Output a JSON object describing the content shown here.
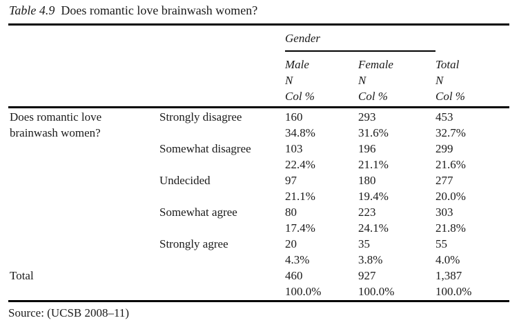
{
  "caption": {
    "label": "Table 4.9",
    "title": "Does romantic love brainwash women?"
  },
  "header": {
    "group": "Gender",
    "cols": [
      {
        "name": "Male",
        "stat1": "N",
        "stat2": "Col %"
      },
      {
        "name": "Female",
        "stat1": "N",
        "stat2": "Col %"
      },
      {
        "name": "Total",
        "stat1": "N",
        "stat2": "Col %"
      }
    ]
  },
  "stub": {
    "question_line1": "Does romantic love",
    "question_line2": "brainwash women?",
    "total_label": "Total"
  },
  "rows": [
    {
      "category": "Strongly disagree",
      "male_n": "160",
      "male_pct": "34.8%",
      "female_n": "293",
      "female_pct": "31.6%",
      "total_n": "453",
      "total_pct": "32.7%"
    },
    {
      "category": "Somewhat disagree",
      "male_n": "103",
      "male_pct": "22.4%",
      "female_n": "196",
      "female_pct": "21.1%",
      "total_n": "299",
      "total_pct": "21.6%"
    },
    {
      "category": "Undecided",
      "male_n": "97",
      "male_pct": "21.1%",
      "female_n": "180",
      "female_pct": "19.4%",
      "total_n": "277",
      "total_pct": "20.0%"
    },
    {
      "category": "Somewhat agree",
      "male_n": "80",
      "male_pct": "17.4%",
      "female_n": "223",
      "female_pct": "24.1%",
      "total_n": "303",
      "total_pct": "21.8%"
    },
    {
      "category": "Strongly agree",
      "male_n": "20",
      "male_pct": "4.3%",
      "female_n": "35",
      "female_pct": "3.8%",
      "total_n": "55",
      "total_pct": "4.0%"
    }
  ],
  "total_row": {
    "male_n": "460",
    "male_pct": "100.0%",
    "female_n": "927",
    "female_pct": "100.0%",
    "total_n": "1,387",
    "total_pct": "100.0%"
  },
  "source": "Source: (UCSB 2008–11)",
  "colors": {
    "text": "#1a1a1a",
    "rule": "#000000",
    "background": "#ffffff"
  }
}
